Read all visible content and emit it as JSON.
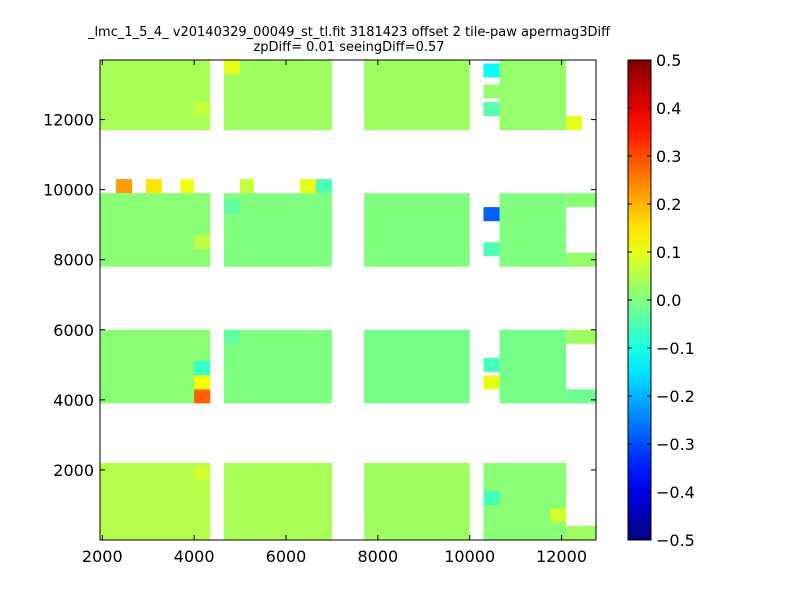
{
  "chart_data": {
    "type": "heatmap",
    "title": "_lmc_1_5_4_ v20140329_00049_st_tl.fit 3181423 offset 2 tile-paw apermag3Diff",
    "subtitle": "zpDiff= 0.01 seeingDiff=0.57",
    "xlabel": "",
    "ylabel": "",
    "xlim": [
      1950,
      12750
    ],
    "ylim": [
      0,
      13700
    ],
    "x_ticks": [
      2000,
      4000,
      6000,
      8000,
      10000,
      12000
    ],
    "y_ticks": [
      2000,
      4000,
      6000,
      8000,
      10000,
      12000
    ],
    "colorbar": {
      "colormap": "jet",
      "range": [
        -0.5,
        0.5
      ],
      "ticks": [
        0.5,
        0.4,
        0.3,
        0.2,
        0.1,
        0.0,
        -0.1,
        -0.2,
        -0.3,
        -0.4,
        -0.5
      ],
      "tick_labels": [
        "0.5",
        "0.4",
        "0.3",
        "0.2",
        "0.1",
        "0.0",
        "−0.1",
        "−0.2",
        "−0.3",
        "−0.4",
        "−0.5"
      ]
    },
    "grid": false,
    "tile_regions": [
      {
        "x": [
          1950,
          4350
        ],
        "y": [
          0,
          2200
        ],
        "value": 0.05
      },
      {
        "x": [
          4650,
          7000
        ],
        "y": [
          0,
          2200
        ],
        "value": 0.04
      },
      {
        "x": [
          7700,
          10000
        ],
        "y": [
          0,
          2200
        ],
        "value": 0.03
      },
      {
        "x": [
          10650,
          12100
        ],
        "y": [
          0,
          2200
        ],
        "value": 0.01
      },
      {
        "x": [
          12100,
          12750
        ],
        "y": [
          0,
          400
        ],
        "value": 0.03
      },
      {
        "x": [
          10300,
          10650
        ],
        "y": [
          0,
          2200
        ],
        "value": 0.01
      },
      {
        "x": [
          1950,
          4350
        ],
        "y": [
          3900,
          6000
        ],
        "value": 0.01
      },
      {
        "x": [
          4650,
          7000
        ],
        "y": [
          3900,
          6000
        ],
        "value": 0.0
      },
      {
        "x": [
          7700,
          10000
        ],
        "y": [
          3900,
          6000
        ],
        "value": -0.01
      },
      {
        "x": [
          10650,
          12100
        ],
        "y": [
          3900,
          6000
        ],
        "value": -0.01
      },
      {
        "x": [
          12100,
          12750
        ],
        "y": [
          3900,
          4300
        ],
        "value": -0.02
      },
      {
        "x": [
          12100,
          12750
        ],
        "y": [
          5600,
          6000
        ],
        "value": 0.03
      },
      {
        "x": [
          1950,
          4350
        ],
        "y": [
          7800,
          9900
        ],
        "value": 0.01
      },
      {
        "x": [
          4650,
          7000
        ],
        "y": [
          7800,
          9900
        ],
        "value": 0.0
      },
      {
        "x": [
          7700,
          10000
        ],
        "y": [
          7800,
          9900
        ],
        "value": 0.0
      },
      {
        "x": [
          10650,
          12100
        ],
        "y": [
          7800,
          9900
        ],
        "value": 0.0
      },
      {
        "x": [
          12100,
          12750
        ],
        "y": [
          7800,
          8200
        ],
        "value": 0.02
      },
      {
        "x": [
          12100,
          12750
        ],
        "y": [
          9500,
          9900
        ],
        "value": 0.01
      },
      {
        "x": [
          1950,
          4350
        ],
        "y": [
          11700,
          13700
        ],
        "value": 0.04
      },
      {
        "x": [
          4650,
          7000
        ],
        "y": [
          11700,
          13700
        ],
        "value": 0.03
      },
      {
        "x": [
          7700,
          10000
        ],
        "y": [
          11700,
          13700
        ],
        "value": 0.03
      },
      {
        "x": [
          10650,
          12100
        ],
        "y": [
          11700,
          13700
        ],
        "value": 0.02
      }
    ],
    "highlight_cells": [
      {
        "x": [
          2300,
          2650
        ],
        "y": [
          9900,
          10300
        ],
        "value": 0.22
      },
      {
        "x": [
          2950,
          3300
        ],
        "y": [
          9900,
          10300
        ],
        "value": 0.15
      },
      {
        "x": [
          3700,
          4000
        ],
        "y": [
          9900,
          10300
        ],
        "value": 0.11
      },
      {
        "x": [
          5000,
          5300
        ],
        "y": [
          9900,
          10300
        ],
        "value": 0.07
      },
      {
        "x": [
          6300,
          6650
        ],
        "y": [
          9900,
          10300
        ],
        "value": 0.1
      },
      {
        "x": [
          6650,
          7000
        ],
        "y": [
          9900,
          10300
        ],
        "value": -0.05
      },
      {
        "x": [
          4000,
          4350
        ],
        "y": [
          3900,
          4300
        ],
        "value": 0.28
      },
      {
        "x": [
          4000,
          4350
        ],
        "y": [
          4300,
          4700
        ],
        "value": 0.12
      },
      {
        "x": [
          4000,
          4350
        ],
        "y": [
          4700,
          5100
        ],
        "value": -0.07
      },
      {
        "x": [
          10300,
          10650
        ],
        "y": [
          9100,
          9500
        ],
        "value": -0.28
      },
      {
        "x": [
          10300,
          10650
        ],
        "y": [
          8100,
          8500
        ],
        "value": -0.05
      },
      {
        "x": [
          10300,
          10650
        ],
        "y": [
          13200,
          13600
        ],
        "value": -0.12
      },
      {
        "x": [
          10300,
          10650
        ],
        "y": [
          12100,
          12500
        ],
        "value": -0.04
      },
      {
        "x": [
          10300,
          10650
        ],
        "y": [
          12600,
          13000
        ],
        "value": 0.02
      },
      {
        "x": [
          10300,
          10650
        ],
        "y": [
          4300,
          4700
        ],
        "value": 0.1
      },
      {
        "x": [
          10300,
          10650
        ],
        "y": [
          4800,
          5200
        ],
        "value": -0.06
      },
      {
        "x": [
          10300,
          10650
        ],
        "y": [
          1000,
          1400
        ],
        "value": -0.06
      },
      {
        "x": [
          12100,
          12450
        ],
        "y": [
          11700,
          12100
        ],
        "value": 0.1
      },
      {
        "x": [
          11750,
          12100
        ],
        "y": [
          500,
          900
        ],
        "value": 0.08
      },
      {
        "x": [
          4650,
          5000
        ],
        "y": [
          13300,
          13700
        ],
        "value": 0.1
      },
      {
        "x": [
          4000,
          4350
        ],
        "y": [
          12100,
          12500
        ],
        "value": 0.07
      },
      {
        "x": [
          4000,
          4350
        ],
        "y": [
          1700,
          2100
        ],
        "value": 0.08
      },
      {
        "x": [
          4000,
          4350
        ],
        "y": [
          8300,
          8700
        ],
        "value": 0.06
      },
      {
        "x": [
          4650,
          5000
        ],
        "y": [
          9300,
          9700
        ],
        "value": -0.03
      },
      {
        "x": [
          4650,
          5000
        ],
        "y": [
          5600,
          6000
        ],
        "value": -0.03
      }
    ]
  }
}
